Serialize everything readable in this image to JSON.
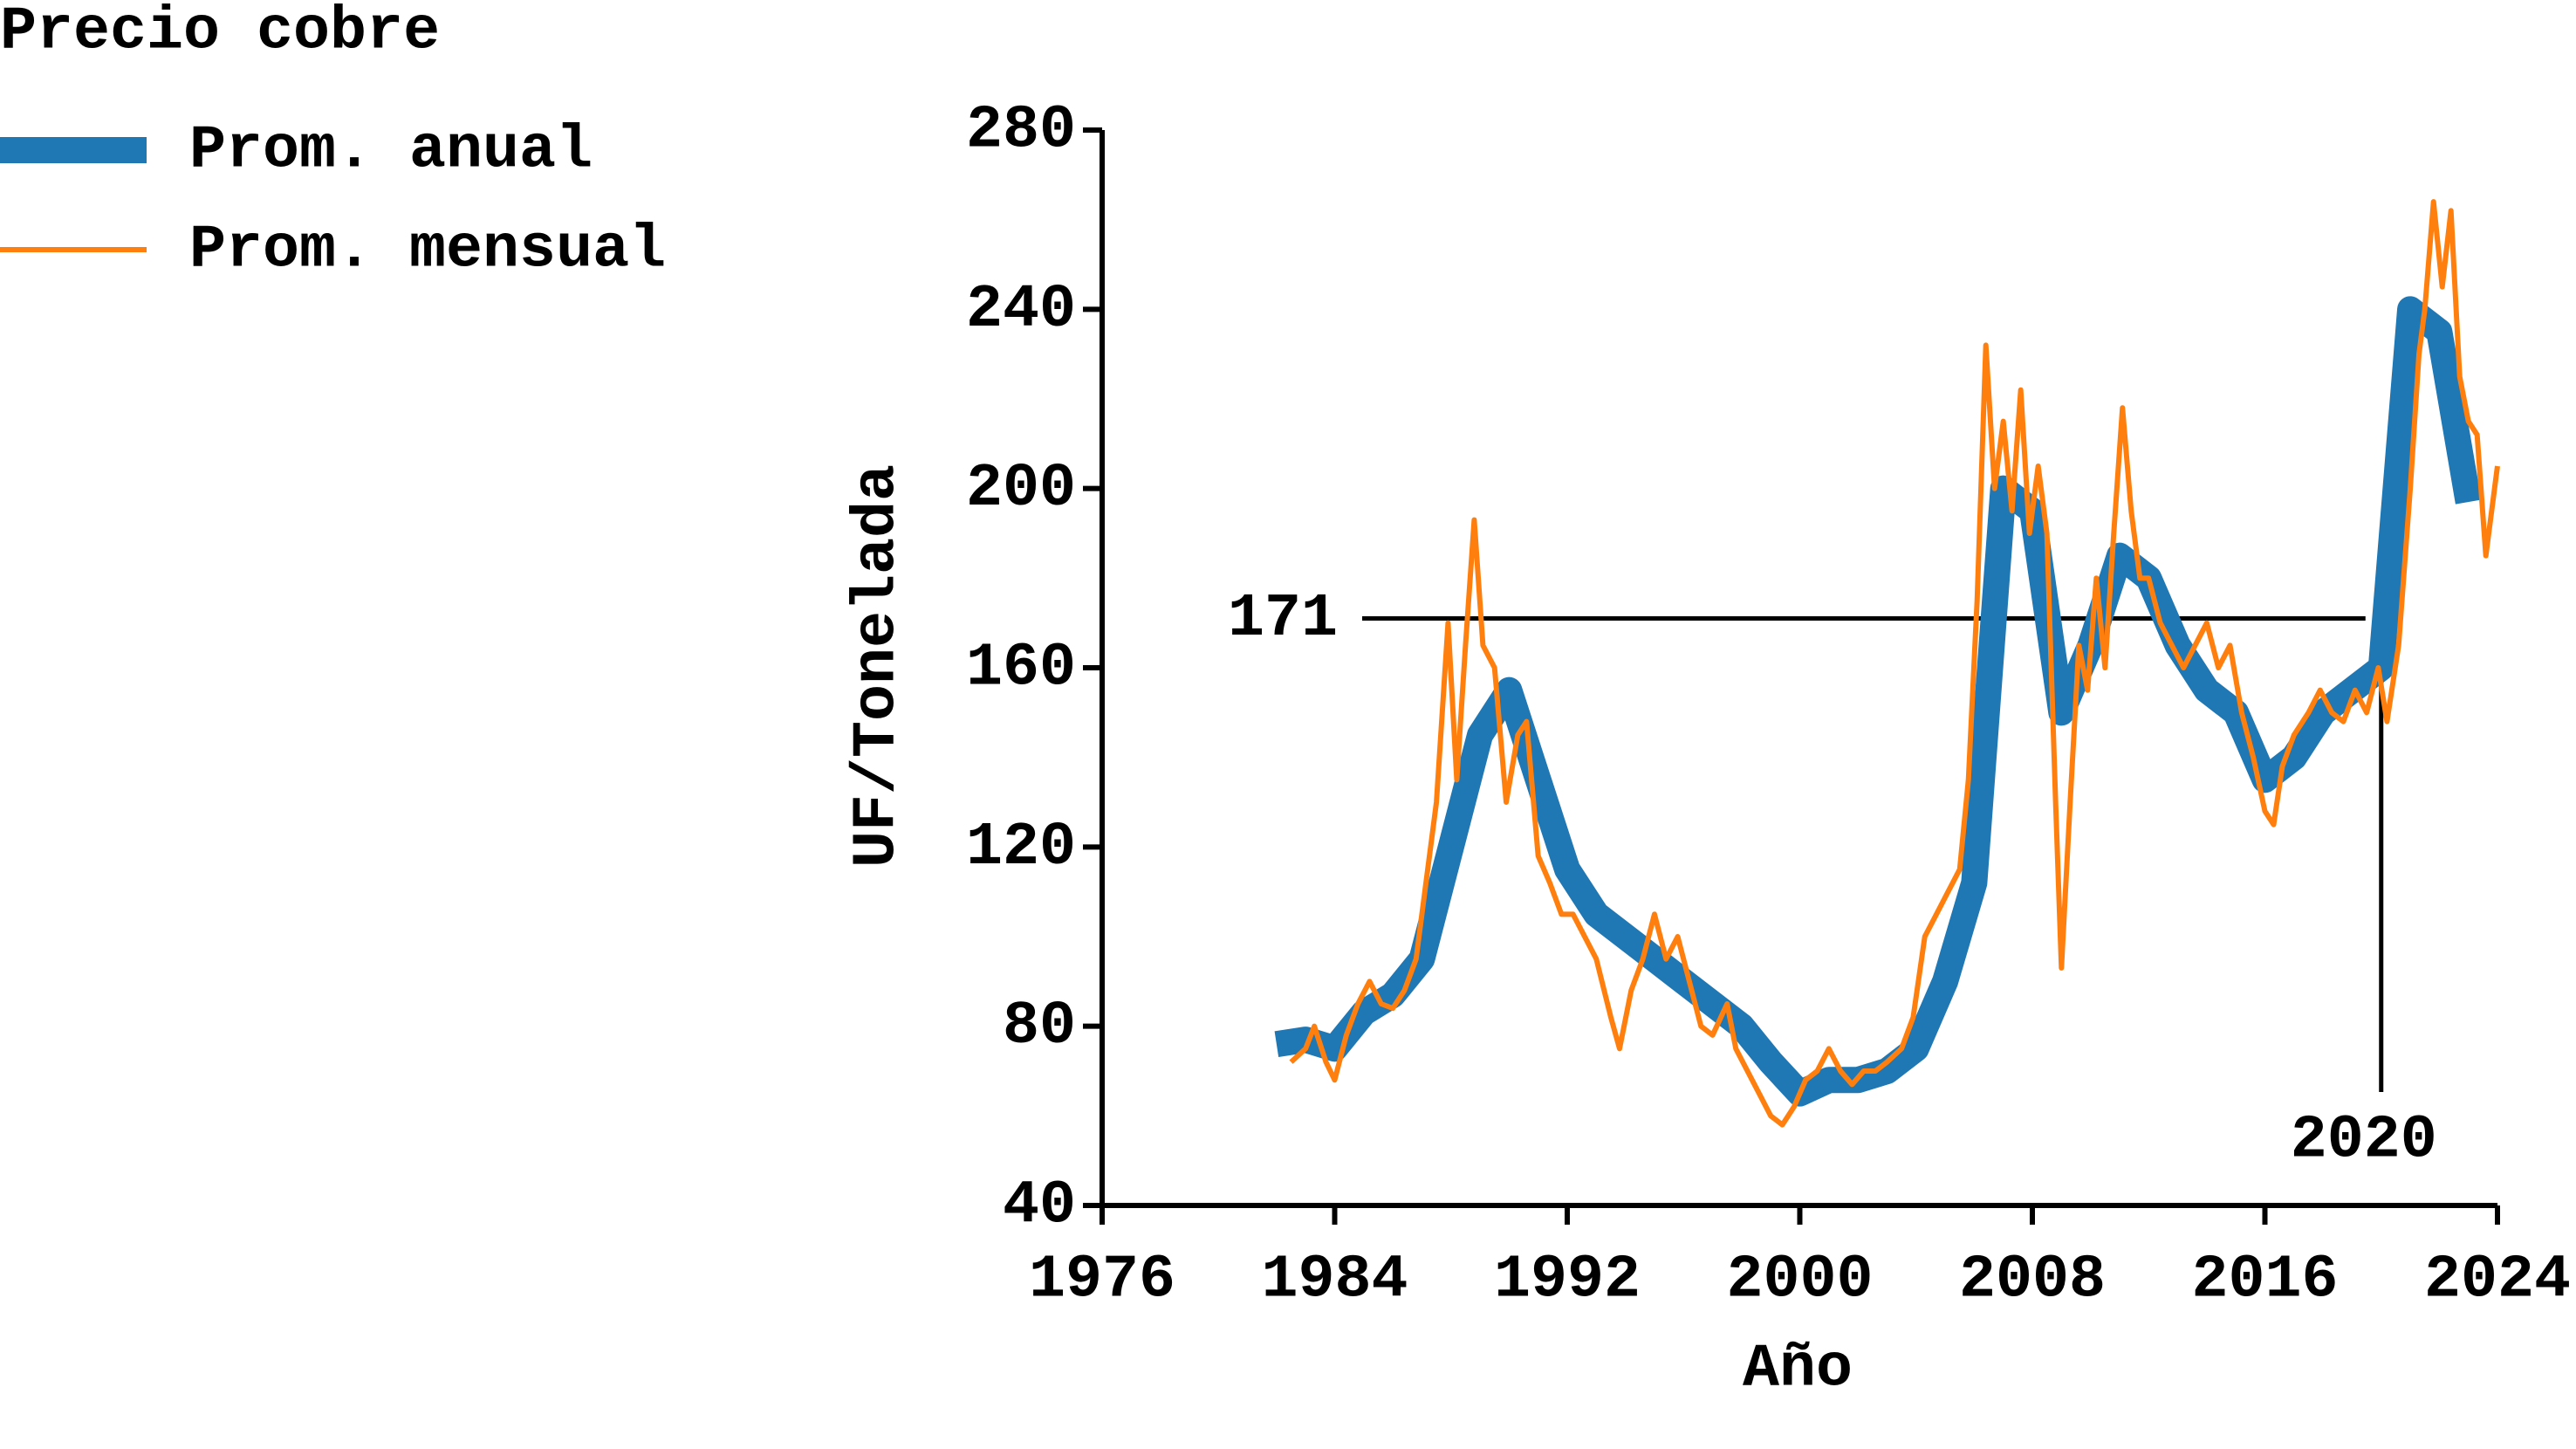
{
  "chart_data": {
    "type": "line",
    "title": "Precio cobre",
    "x_label": "Año",
    "y_label": "UF/Tonelada",
    "xlim": [
      1976,
      2024
    ],
    "xticks": [
      1976,
      1984,
      1992,
      2000,
      2008,
      2016,
      2024
    ],
    "ylim": [
      40,
      280
    ],
    "yticks": [
      40,
      80,
      120,
      160,
      200,
      240,
      280
    ],
    "hline": 171,
    "vline": 2020,
    "series": [
      {
        "name": "Prom. anual",
        "color": "#1f77b4",
        "x": [
          1982,
          1983,
          1984,
          1985,
          1986,
          1987,
          1988,
          1989,
          1990,
          1991,
          1992,
          1993,
          1994,
          1995,
          1996,
          1997,
          1998,
          1999,
          2000,
          2001,
          2002,
          2003,
          2004,
          2005,
          2006,
          2007,
          2008,
          2009,
          2010,
          2011,
          2012,
          2013,
          2014,
          2015,
          2016,
          2017,
          2018,
          2019,
          2020,
          2021,
          2022,
          2023
        ],
        "values": [
          76,
          77,
          75,
          83,
          87,
          95,
          120,
          145,
          155,
          135,
          115,
          105,
          100,
          95,
          90,
          85,
          80,
          72,
          65,
          68,
          68,
          70,
          75,
          90,
          112,
          200,
          195,
          150,
          165,
          185,
          180,
          165,
          155,
          150,
          135,
          140,
          150,
          155,
          160,
          240,
          235,
          197
        ]
      },
      {
        "name": "Prom. mensual",
        "color": "#ff7f0e",
        "x": [
          1982.5,
          1983,
          1983.3,
          1983.7,
          1984,
          1984.4,
          1984.8,
          1985.2,
          1985.6,
          1986,
          1986.4,
          1986.8,
          1987.2,
          1987.5,
          1987.9,
          1988.2,
          1988.5,
          1988.8,
          1989.1,
          1989.5,
          1989.9,
          1990.3,
          1990.6,
          1991,
          1991.4,
          1991.8,
          1992.2,
          1992.6,
          1993,
          1993.5,
          1993.8,
          1994.2,
          1994.6,
          1995,
          1995.4,
          1995.8,
          1996.2,
          1996.6,
          1997,
          1997.5,
          1997.8,
          1998.2,
          1998.6,
          1999,
          1999.4,
          1999.8,
          2000.2,
          2000.6,
          2001,
          2001.4,
          2001.8,
          2002.2,
          2002.6,
          2003,
          2003.5,
          2003.9,
          2004.3,
          2004.7,
          2005.1,
          2005.5,
          2005.8,
          2006.1,
          2006.4,
          2006.7,
          2007,
          2007.3,
          2007.6,
          2007.9,
          2008.2,
          2008.5,
          2008.8,
          2009,
          2009.3,
          2009.6,
          2009.9,
          2010.2,
          2010.5,
          2010.8,
          2011.1,
          2011.4,
          2011.7,
          2012,
          2012.4,
          2012.8,
          2013.2,
          2013.6,
          2014,
          2014.4,
          2014.8,
          2015.2,
          2015.6,
          2016,
          2016.3,
          2016.6,
          2017,
          2017.5,
          2017.9,
          2018.3,
          2018.7,
          2019.1,
          2019.5,
          2019.9,
          2020.2,
          2020.6,
          2021,
          2021.3,
          2021.5,
          2021.8,
          2022.1,
          2022.4,
          2022.7,
          2023,
          2023.3,
          2023.6,
          2023.9,
          2024
        ],
        "values": [
          72,
          75,
          80,
          72,
          68,
          78,
          85,
          90,
          85,
          84,
          88,
          95,
          115,
          130,
          170,
          135,
          165,
          193,
          165,
          160,
          130,
          145,
          148,
          118,
          112,
          105,
          105,
          100,
          95,
          82,
          75,
          88,
          95,
          105,
          95,
          100,
          90,
          80,
          78,
          85,
          75,
          70,
          65,
          60,
          58,
          62,
          68,
          70,
          75,
          70,
          67,
          70,
          70,
          72,
          75,
          82,
          100,
          105,
          110,
          115,
          135,
          175,
          232,
          200,
          215,
          195,
          222,
          190,
          205,
          190,
          130,
          93,
          130,
          165,
          155,
          180,
          160,
          190,
          218,
          195,
          180,
          180,
          170,
          165,
          160,
          165,
          170,
          160,
          165,
          150,
          140,
          128,
          125,
          138,
          145,
          150,
          155,
          150,
          148,
          155,
          150,
          160,
          148,
          165,
          200,
          230,
          240,
          264,
          245,
          262,
          225,
          215,
          212,
          185,
          200,
          205
        ]
      }
    ]
  }
}
